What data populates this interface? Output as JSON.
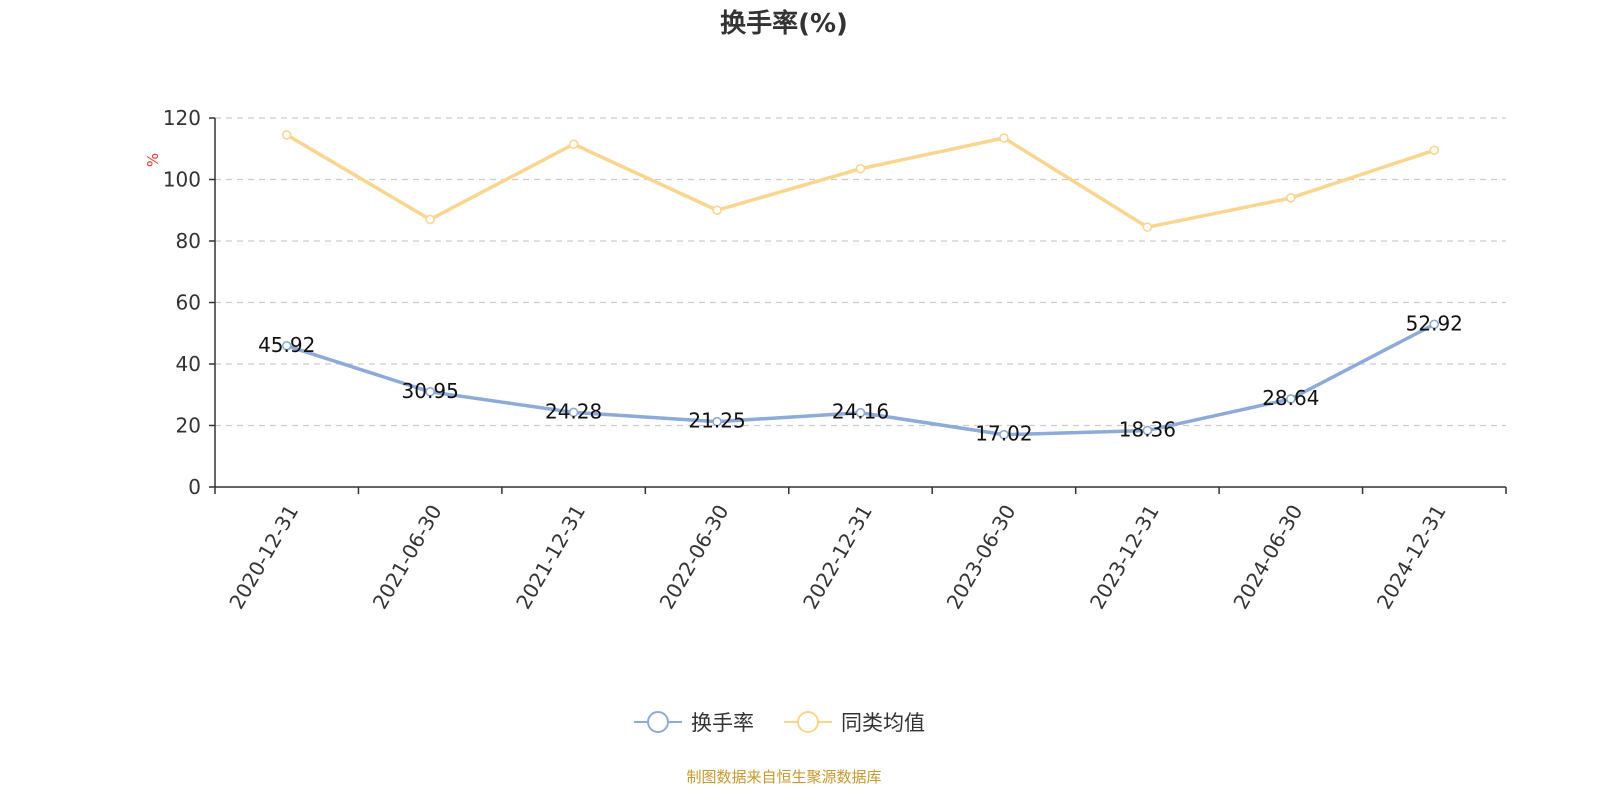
{
  "chart_data": {
    "type": "line",
    "title": "换手率(%)",
    "ylabel": "%",
    "xlabel": "",
    "categories": [
      "2020-12-31",
      "2021-06-30",
      "2021-12-31",
      "2022-06-30",
      "2022-12-31",
      "2023-06-30",
      "2023-12-31",
      "2024-06-30",
      "2024-12-31"
    ],
    "ylim": [
      0,
      120
    ],
    "yticks": [
      0,
      20,
      40,
      60,
      80,
      100,
      120
    ],
    "grid": true,
    "legend_position": "bottom-center",
    "series": [
      {
        "name": "换手率",
        "color": "#8eaad9",
        "values": [
          45.92,
          30.95,
          24.28,
          21.25,
          24.16,
          17.02,
          18.36,
          28.64,
          52.92
        ],
        "labels": [
          "45.92",
          "30.95",
          "24.28",
          "21.25",
          "24.16",
          "17.02",
          "18.36",
          "28.64",
          "52.92"
        ]
      },
      {
        "name": "同类均值",
        "color": "#fad58f",
        "values": [
          114.5,
          87.0,
          111.5,
          90.0,
          103.5,
          113.5,
          84.5,
          94.0,
          109.5
        ]
      }
    ],
    "source": "制图数据来自恒生聚源数据库"
  }
}
